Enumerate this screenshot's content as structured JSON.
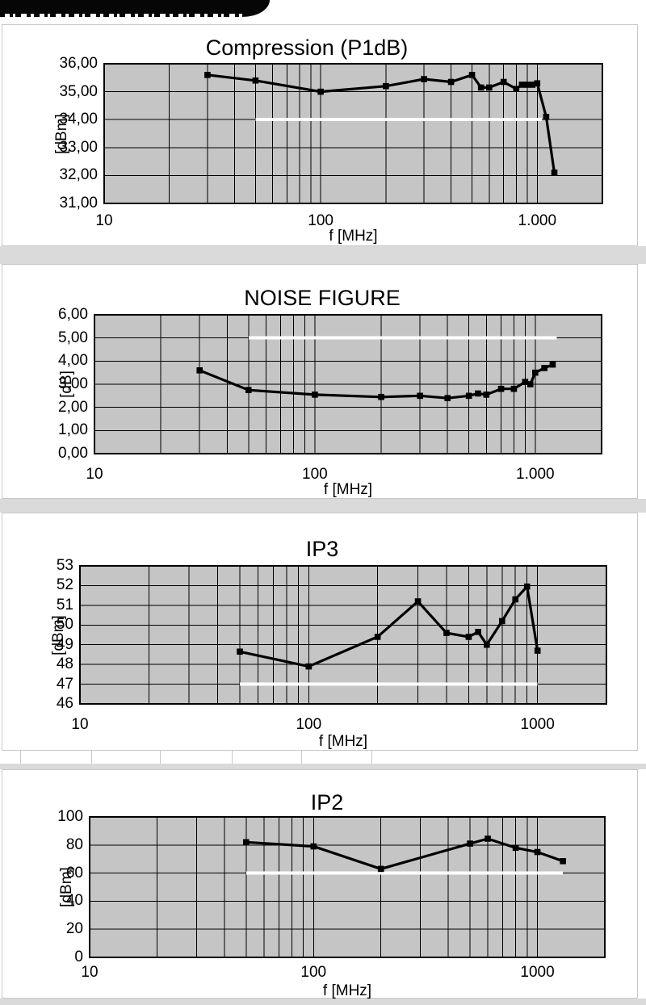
{
  "page": {
    "background": "#ffffff",
    "gap_band_color": "#dadada",
    "header_bar_color": "#060606",
    "panel_border_color": "#c8c8c8"
  },
  "chart_data": [
    {
      "type": "line",
      "title": "Compression (P1dB)",
      "ylabel": "[dBm]",
      "xlabel": "f [MHz]",
      "x_scale": "log",
      "xlim": [
        10,
        2000
      ],
      "ylim": [
        31,
        36
      ],
      "grid": "on",
      "plot_bg": "#c5c5c5",
      "line_color": "#000000",
      "limit_line": {
        "value": 34,
        "from": 50,
        "to": 1050,
        "color": "#ffffff"
      },
      "y_ticks": [
        {
          "value": 36,
          "label": "36,00"
        },
        {
          "value": 35,
          "label": "35,00"
        },
        {
          "value": 34,
          "label": "34,00"
        },
        {
          "value": 33,
          "label": "33,00"
        },
        {
          "value": 32,
          "label": "32,00"
        },
        {
          "value": 31,
          "label": "31,00"
        }
      ],
      "x_ticks": [
        {
          "value": 10,
          "label": "10"
        },
        {
          "value": 100,
          "label": "100"
        },
        {
          "value": 1000,
          "label": "1.000"
        }
      ],
      "series": [
        {
          "name": "P1dB",
          "x": [
            30,
            50,
            100,
            200,
            300,
            400,
            500,
            550,
            600,
            700,
            800,
            850,
            900,
            950,
            1000,
            1100,
            1200
          ],
          "y": [
            35.6,
            35.4,
            35.0,
            35.2,
            35.45,
            35.35,
            35.6,
            35.15,
            35.15,
            35.35,
            35.1,
            35.25,
            35.25,
            35.25,
            35.3,
            34.1,
            32.1
          ]
        }
      ]
    },
    {
      "type": "line",
      "title": "NOISE FIGURE",
      "ylabel": "[dB]",
      "xlabel": "f [MHz]",
      "x_scale": "log",
      "xlim": [
        10,
        2000
      ],
      "ylim": [
        0,
        6
      ],
      "grid": "on",
      "plot_bg": "#c5c5c5",
      "line_color": "#000000",
      "limit_line": {
        "value": 5,
        "from": 50,
        "to": 1250,
        "color": "#ffffff"
      },
      "y_ticks": [
        {
          "value": 6,
          "label": "6,00"
        },
        {
          "value": 5,
          "label": "5,00"
        },
        {
          "value": 4,
          "label": "4,00"
        },
        {
          "value": 3,
          "label": "3,00"
        },
        {
          "value": 2,
          "label": "2,00"
        },
        {
          "value": 1,
          "label": "1,00"
        },
        {
          "value": 0,
          "label": "0,00"
        }
      ],
      "x_ticks": [
        {
          "value": 10,
          "label": "10"
        },
        {
          "value": 100,
          "label": "100"
        },
        {
          "value": 1000,
          "label": "1.000"
        }
      ],
      "series": [
        {
          "name": "NF",
          "x": [
            30,
            50,
            100,
            200,
            300,
            400,
            500,
            550,
            600,
            700,
            800,
            900,
            950,
            1000,
            1100,
            1200
          ],
          "y": [
            3.6,
            2.75,
            2.55,
            2.45,
            2.5,
            2.4,
            2.5,
            2.6,
            2.55,
            2.8,
            2.8,
            3.1,
            3.0,
            3.5,
            3.7,
            3.85
          ]
        }
      ]
    },
    {
      "type": "line",
      "title": "IP3",
      "ylabel": "[dBm]",
      "xlabel": "f [MHz]",
      "x_scale": "log",
      "xlim": [
        10,
        2000
      ],
      "ylim": [
        46,
        53
      ],
      "grid": "on",
      "plot_bg": "#c5c5c5",
      "line_color": "#000000",
      "limit_line": {
        "value": 47,
        "from": 50,
        "to": 1000,
        "color": "#ffffff"
      },
      "y_ticks": [
        {
          "value": 53,
          "label": "53"
        },
        {
          "value": 52,
          "label": "52"
        },
        {
          "value": 51,
          "label": "51"
        },
        {
          "value": 50,
          "label": "50"
        },
        {
          "value": 49,
          "label": "49"
        },
        {
          "value": 48,
          "label": "48"
        },
        {
          "value": 47,
          "label": "47"
        },
        {
          "value": 46,
          "label": "46"
        }
      ],
      "x_ticks": [
        {
          "value": 10,
          "label": "10"
        },
        {
          "value": 100,
          "label": "100"
        },
        {
          "value": 1000,
          "label": "1000"
        }
      ],
      "series": [
        {
          "name": "IP3",
          "x": [
            50,
            100,
            200,
            300,
            400,
            500,
            550,
            600,
            700,
            800,
            900,
            1000
          ],
          "y": [
            48.65,
            47.9,
            49.4,
            51.2,
            49.6,
            49.4,
            49.65,
            49.0,
            50.2,
            51.3,
            51.95,
            48.7
          ]
        }
      ]
    },
    {
      "type": "line",
      "title": "IP2",
      "ylabel": "[dBm]",
      "xlabel": "f [MHz]",
      "x_scale": "log",
      "xlim": [
        10,
        2000
      ],
      "ylim": [
        0,
        100
      ],
      "grid": "on",
      "plot_bg": "#c5c5c5",
      "line_color": "#000000",
      "limit_line": {
        "value": 60,
        "from": 50,
        "to": 1300,
        "color": "#ffffff"
      },
      "y_ticks": [
        {
          "value": 100,
          "label": "100"
        },
        {
          "value": 80,
          "label": "80"
        },
        {
          "value": 60,
          "label": "60"
        },
        {
          "value": 40,
          "label": "40"
        },
        {
          "value": 20,
          "label": "20"
        },
        {
          "value": 0,
          "label": "0"
        }
      ],
      "x_ticks": [
        {
          "value": 10,
          "label": "10"
        },
        {
          "value": 100,
          "label": "100"
        },
        {
          "value": 1000,
          "label": "1000"
        }
      ],
      "series": [
        {
          "name": "IP2",
          "x": [
            50,
            100,
            200,
            500,
            600,
            800,
            1000,
            1300
          ],
          "y": [
            82,
            79,
            63,
            81,
            84.5,
            78,
            75,
            68.5
          ]
        }
      ]
    }
  ]
}
